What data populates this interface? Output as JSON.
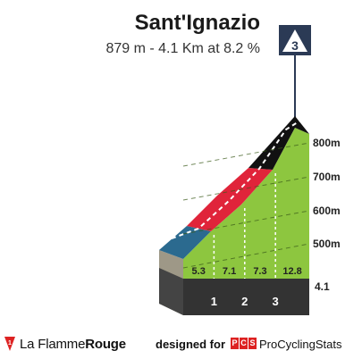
{
  "header": {
    "title": "Sant'Ignazio",
    "subtitle": "879 m - 4.1 Km at 8.2 %",
    "category": "3"
  },
  "chart_data": {
    "type": "area",
    "title": "Sant'Ignazio",
    "subtitle": "879 m - 4.1 Km at 8.2 %",
    "distance_km": 4.1,
    "x_ticks": [
      "1",
      "2",
      "3"
    ],
    "x_end_label": "4.1",
    "y_ticks": [
      "500m",
      "600m",
      "700m",
      "800m"
    ],
    "segments": [
      {
        "from_km": 0,
        "to_km": 1,
        "gradient": 5.3,
        "gradient_label": "5.3",
        "color": "#2b6a8f"
      },
      {
        "from_km": 1,
        "to_km": 2,
        "gradient": 7.1,
        "gradient_label": "7.1",
        "color": "#8dc63f"
      },
      {
        "from_km": 2,
        "to_km": 3,
        "gradient": 7.3,
        "gradient_label": "7.3",
        "color": "#8dc63f"
      },
      {
        "from_km": 3,
        "to_km": 4.1,
        "gradient": 12.8,
        "gradient_label": "12.8",
        "color": "#8dc63f"
      }
    ],
    "road_stripes": [
      {
        "label": "blue",
        "color": "#2b6a8f"
      },
      {
        "label": "red",
        "color": "#e0243a"
      },
      {
        "label": "black",
        "color": "#111111"
      }
    ],
    "colors": {
      "fill": "#8dc63f",
      "base": "#9e9887",
      "axis_bar": "#333333",
      "badge": "#2b3a55"
    }
  },
  "footer": {
    "brand_light": "La Flamme",
    "brand_bold": "Rouge",
    "designed_for": "designed for",
    "pcs_letters": [
      "P",
      "C",
      "S"
    ],
    "pcs_name": "ProCyclingStats"
  }
}
